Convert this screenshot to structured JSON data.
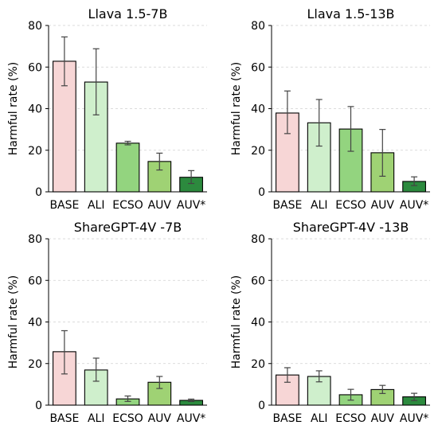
{
  "chart_data": [
    {
      "type": "bar",
      "title": "Llava 1.5-7B",
      "xlabel": "",
      "ylabel": "Harmful rate (%)",
      "categories": [
        "BASE",
        "ALI",
        "ECSO",
        "AUV",
        "AUV*"
      ],
      "values": [
        62.8,
        52.8,
        23.4,
        14.6,
        7.0
      ],
      "error_low": [
        51.0,
        37.0,
        22.6,
        10.5,
        4.0
      ],
      "error_high": [
        74.5,
        68.8,
        24.3,
        18.6,
        10.2
      ],
      "ylim": [
        0,
        80
      ],
      "yticks": [
        0,
        20,
        40,
        60,
        80
      ],
      "grid": true
    },
    {
      "type": "bar",
      "title": "Llava 1.5-13B",
      "xlabel": "",
      "ylabel": "Harmful rate (%)",
      "categories": [
        "BASE",
        "ALI",
        "ECSO",
        "AUV",
        "AUV*"
      ],
      "values": [
        37.9,
        33.2,
        30.2,
        18.8,
        5.0
      ],
      "error_low": [
        28.0,
        22.0,
        19.5,
        7.5,
        3.0
      ],
      "error_high": [
        48.5,
        44.4,
        41.0,
        30.0,
        7.2
      ],
      "ylim": [
        0,
        80
      ],
      "yticks": [
        0,
        20,
        40,
        60,
        80
      ],
      "grid": true
    },
    {
      "type": "bar",
      "title": "ShareGPT-4V -7B",
      "xlabel": "",
      "ylabel": "Harmful rate (%)",
      "categories": [
        "BASE",
        "ALI",
        "ECSO",
        "AUV",
        "AUV*"
      ],
      "values": [
        25.7,
        16.9,
        3.0,
        11.0,
        2.3
      ],
      "error_low": [
        15.0,
        11.5,
        1.8,
        8.0,
        1.8
      ],
      "error_high": [
        35.8,
        22.6,
        4.4,
        13.8,
        2.9
      ],
      "ylim": [
        0,
        80
      ],
      "yticks": [
        0,
        20,
        40,
        60,
        80
      ],
      "grid": true
    },
    {
      "type": "bar",
      "title": "ShareGPT-4V -13B",
      "xlabel": "",
      "ylabel": "Harmful rate (%)",
      "categories": [
        "BASE",
        "ALI",
        "ECSO",
        "AUV",
        "AUV*"
      ],
      "values": [
        14.5,
        13.8,
        5.0,
        7.5,
        4.0
      ],
      "error_low": [
        11.0,
        11.2,
        2.4,
        5.6,
        2.2
      ],
      "error_high": [
        18.0,
        16.5,
        7.6,
        9.5,
        5.7
      ],
      "ylim": [
        0,
        80
      ],
      "yticks": [
        0,
        20,
        40,
        60,
        80
      ],
      "grid": true
    }
  ],
  "colors": [
    "#f7d6d6",
    "#cfefcc",
    "#93d47f",
    "#9fd274",
    "#2c8a3e"
  ],
  "error_color": "#444444"
}
